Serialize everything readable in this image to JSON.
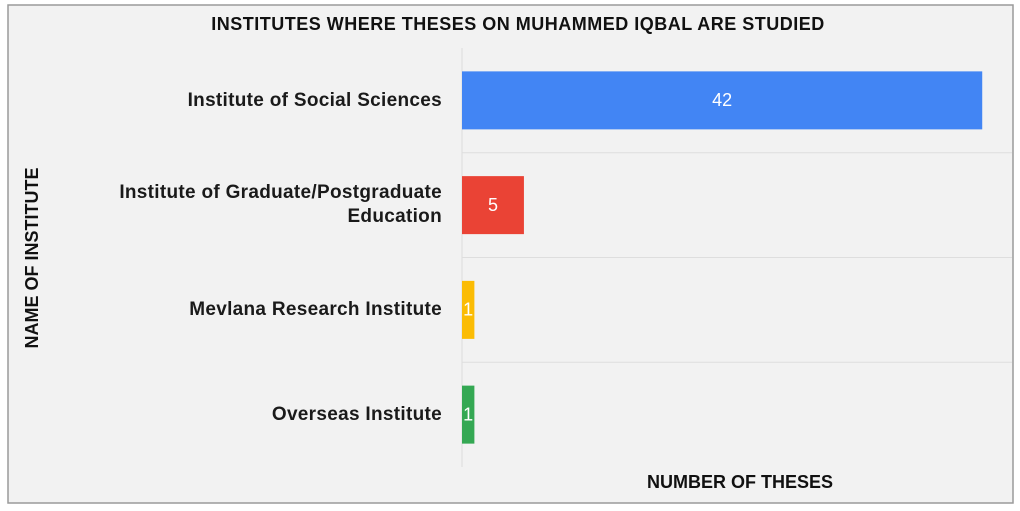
{
  "chart_data": {
    "type": "bar",
    "orientation": "horizontal",
    "title": "INSTITUTES WHERE THESES ON MUHAMMED IQBAL ARE STUDIED",
    "x_label": "NUMBER OF THESES",
    "y_label": "NAME OF INSTITUTE",
    "categories": [
      "Institute of Social Sciences",
      "Institute of Graduate/Postgraduate Education",
      "Mevlana Research Institute",
      "Overseas Institute"
    ],
    "values": [
      42,
      5,
      1,
      1
    ],
    "colors": [
      "#4285f4",
      "#ea4335",
      "#fbbc04",
      "#34a853"
    ],
    "xlim": [
      0,
      44
    ]
  }
}
